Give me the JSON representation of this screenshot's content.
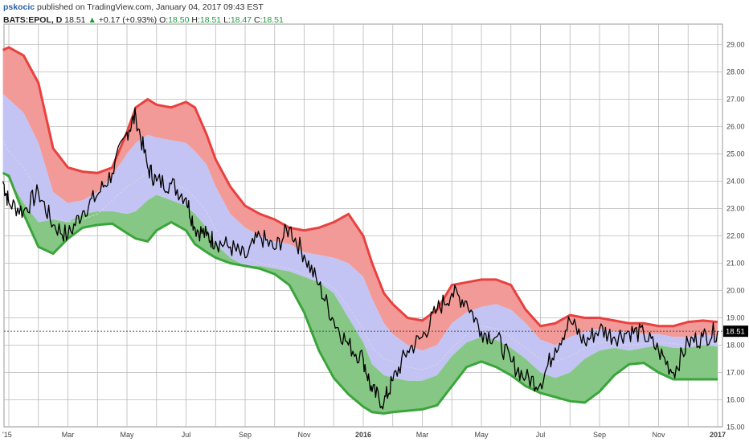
{
  "header": {
    "user": "pskocic",
    "published_text": "published on TradingView.com, January 04, 2017 09:43 EST"
  },
  "quote": {
    "symbol": "BATS:EPOL, D",
    "last": "18.51",
    "arrow": "▲",
    "change": "+0.17 (+0.93%)",
    "o_label": "O:",
    "o_value": "18.50",
    "h_label": "H:",
    "h_value": "18.51",
    "l_label": "L:",
    "l_value": "18.47",
    "c_label": "C:",
    "c_value": "18.51"
  },
  "colors": {
    "upper_band": "#e8413f",
    "upper_fill": "#f29a98",
    "middle_fill": "#c3c4f3",
    "lower_fill": "#86c786",
    "lower_band": "#3aa53a",
    "price": "#000000",
    "grid": "#b9b9b9",
    "last_price_bg": "#000000"
  },
  "chart_data": {
    "type": "line",
    "title": "",
    "y_range": [
      15.0,
      29.0
    ],
    "y_ticks": [
      "15.00",
      "16.00",
      "17.00",
      "18.00",
      "19.00",
      "20.00",
      "21.00",
      "22.00",
      "23.00",
      "24.00",
      "25.00",
      "26.00",
      "27.00",
      "28.00",
      "29.00"
    ],
    "x_ticks": [
      {
        "label": "'15",
        "t": 0.0,
        "bold": false
      },
      {
        "label": "Mar",
        "t": 2.0,
        "bold": false
      },
      {
        "label": "May",
        "t": 4.0,
        "bold": false
      },
      {
        "label": "Jul",
        "t": 6.0,
        "bold": false
      },
      {
        "label": "Sep",
        "t": 8.0,
        "bold": false
      },
      {
        "label": "Nov",
        "t": 10.0,
        "bold": false
      },
      {
        "label": "2016",
        "t": 12.0,
        "bold": true
      },
      {
        "label": "Mar",
        "t": 14.0,
        "bold": false
      },
      {
        "label": "May",
        "t": 16.0,
        "bold": false
      },
      {
        "label": "Jul",
        "t": 18.0,
        "bold": false
      },
      {
        "label": "Sep",
        "t": 20.0,
        "bold": false
      },
      {
        "label": "Nov",
        "t": 22.0,
        "bold": false
      },
      {
        "label": "2017",
        "t": 24.0,
        "bold": true
      }
    ],
    "last_price": 18.51,
    "last_price_label": "18.51",
    "x": [
      -0.2,
      0.0,
      0.5,
      1.0,
      1.5,
      2.0,
      2.5,
      3.0,
      3.5,
      4.0,
      4.3,
      4.7,
      5.0,
      5.5,
      6.0,
      6.3,
      6.7,
      7.0,
      7.5,
      8.0,
      8.5,
      9.0,
      9.5,
      10.0,
      10.5,
      11.0,
      11.5,
      12.0,
      12.3,
      12.7,
      13.0,
      13.5,
      14.0,
      14.5,
      15.0,
      15.5,
      16.0,
      16.5,
      17.0,
      17.5,
      18.0,
      18.5,
      19.0,
      19.5,
      20.0,
      20.5,
      21.0,
      21.5,
      22.0,
      22.5,
      23.0,
      23.5,
      24.0
    ],
    "series": [
      {
        "name": "Upper",
        "values": [
          28.8,
          28.9,
          28.6,
          27.6,
          25.2,
          24.5,
          24.35,
          24.3,
          24.5,
          25.8,
          26.7,
          27.0,
          26.8,
          26.7,
          26.9,
          26.7,
          25.7,
          24.8,
          23.8,
          23.1,
          22.8,
          22.6,
          22.3,
          22.2,
          22.3,
          22.5,
          22.8,
          22.0,
          21.0,
          19.9,
          19.5,
          19.0,
          18.9,
          19.3,
          20.2,
          20.3,
          20.4,
          20.4,
          20.2,
          19.3,
          18.7,
          18.8,
          19.1,
          19.0,
          19.0,
          18.9,
          18.8,
          18.8,
          18.7,
          18.7,
          18.85,
          18.9,
          18.85
        ]
      },
      {
        "name": "Middle",
        "values": [
          27.2,
          27.0,
          26.5,
          25.4,
          23.6,
          23.2,
          23.3,
          23.6,
          24.2,
          25.0,
          25.4,
          25.7,
          25.6,
          25.5,
          25.4,
          25.1,
          24.6,
          23.8,
          22.8,
          22.3,
          22.0,
          21.8,
          21.7,
          21.4,
          21.3,
          21.2,
          21.0,
          20.5,
          19.7,
          18.8,
          18.4,
          18.0,
          17.8,
          18.0,
          18.8,
          19.2,
          19.4,
          19.5,
          19.3,
          18.8,
          18.2,
          18.0,
          18.3,
          18.5,
          18.6,
          18.5,
          18.5,
          18.4,
          18.4,
          18.3,
          18.3,
          18.4,
          18.35
        ]
      },
      {
        "name": "Mid-Lower",
        "values": [
          25.5,
          25.1,
          24.5,
          23.6,
          22.7,
          22.5,
          22.6,
          22.8,
          23.3,
          23.8,
          24.0,
          24.3,
          24.3,
          24.0,
          23.7,
          23.4,
          22.9,
          22.2,
          21.6,
          21.2,
          21.0,
          20.9,
          20.8,
          20.6,
          20.4,
          20.1,
          19.4,
          18.6,
          17.9,
          17.5,
          17.4,
          17.2,
          17.1,
          17.3,
          17.9,
          18.4,
          18.7,
          18.6,
          18.3,
          17.9,
          17.5,
          17.4,
          17.6,
          17.9,
          18.1,
          18.1,
          18.0,
          18.05,
          18.1,
          18.05,
          18.0,
          18.1,
          18.05
        ]
      },
      {
        "name": "Lower-Mid",
        "values": [
          24.3,
          24.1,
          23.2,
          22.5,
          22.6,
          22.5,
          22.8,
          22.9,
          22.9,
          22.8,
          22.9,
          23.3,
          23.5,
          23.3,
          23.1,
          22.8,
          22.3,
          21.7,
          21.2,
          20.9,
          20.9,
          20.8,
          20.7,
          20.5,
          20.3,
          19.9,
          19.0,
          18.1,
          17.3,
          16.9,
          16.8,
          16.7,
          16.7,
          16.9,
          17.6,
          18.1,
          18.3,
          18.2,
          17.9,
          17.5,
          17.0,
          16.8,
          17.0,
          17.5,
          17.8,
          17.9,
          17.8,
          17.9,
          18.0,
          17.9,
          17.9,
          18.0,
          17.95
        ]
      },
      {
        "name": "Lower",
        "values": [
          24.3,
          24.2,
          23.0,
          21.9,
          21.35,
          21.8,
          22.6,
          22.7,
          22.7,
          22.5,
          22.5,
          23.0,
          23.1,
          22.8,
          22.4,
          22.0,
          21.4,
          21.2,
          21.0,
          20.8,
          20.7,
          20.5,
          20.1,
          19.3,
          18.2,
          17.2,
          16.7,
          16.0,
          15.7,
          15.5,
          15.6,
          15.6,
          15.65,
          15.9,
          16.8,
          17.7,
          18.1,
          17.9,
          17.3,
          16.8,
          16.3,
          16.0,
          15.9,
          15.8,
          16.3,
          17.0,
          17.5,
          17.7,
          17.7,
          17.3,
          17.1,
          17.0,
          16.95
        ]
      },
      {
        "name": "Bottom",
        "values": [
          24.3,
          24.2,
          22.8,
          21.6,
          21.35,
          21.9,
          22.3,
          22.4,
          22.45,
          22.1,
          21.9,
          21.8,
          22.2,
          22.5,
          22.2,
          21.7,
          21.4,
          21.2,
          21.0,
          20.9,
          20.8,
          20.6,
          20.2,
          19.2,
          17.8,
          16.8,
          16.2,
          15.75,
          15.55,
          15.5,
          15.55,
          15.6,
          15.65,
          15.8,
          16.5,
          17.2,
          17.4,
          17.2,
          16.9,
          16.5,
          16.25,
          16.1,
          15.95,
          15.9,
          16.3,
          16.9,
          17.3,
          17.35,
          17.0,
          16.75,
          16.75,
          16.75,
          16.75
        ]
      },
      {
        "name": "Price",
        "values": [
          24.0,
          23.2,
          22.9,
          23.6,
          22.4,
          22.0,
          22.9,
          23.5,
          24.3,
          25.8,
          26.4,
          24.5,
          24.0,
          23.9,
          23.4,
          22.3,
          22.0,
          21.8,
          21.6,
          21.2,
          22.0,
          21.5,
          22.3,
          21.3,
          20.2,
          18.9,
          18.0,
          17.5,
          16.3,
          15.9,
          16.7,
          17.8,
          18.3,
          19.3,
          19.9,
          19.6,
          18.5,
          18.3,
          17.4,
          16.8,
          16.6,
          17.9,
          18.9,
          18.1,
          18.6,
          18.3,
          18.5,
          18.4,
          17.8,
          17.0,
          18.1,
          18.3,
          18.51
        ]
      }
    ]
  }
}
